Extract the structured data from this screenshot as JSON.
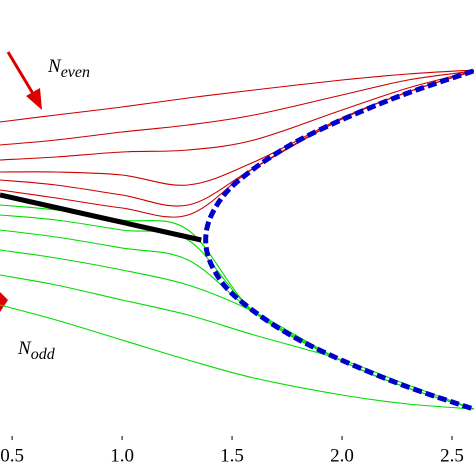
{
  "chart_data": {
    "type": "line",
    "annotations": [
      {
        "text": "N",
        "sub": "even"
      },
      {
        "text": "N",
        "sub": "odd"
      }
    ],
    "x": [
      0.445,
      0.7,
      1.0,
      1.3,
      1.6,
      2.0,
      2.3,
      2.6
    ],
    "series": [
      {
        "color": "#cc0000",
        "values": [
          3.18,
          3.25,
          3.33,
          3.42,
          3.5,
          3.6,
          3.66,
          3.7
        ]
      },
      {
        "color": "#cc0000",
        "values": [
          2.95,
          3.0,
          3.08,
          3.15,
          3.25,
          3.45,
          3.6,
          3.69
        ]
      },
      {
        "color": "#cc0000",
        "values": [
          2.8,
          2.83,
          2.88,
          2.9,
          3.0,
          3.3,
          3.52,
          3.69
        ]
      },
      {
        "color": "#cc0000",
        "values": [
          2.68,
          2.68,
          2.65,
          2.55,
          2.78,
          3.22,
          3.48,
          3.69
        ]
      },
      {
        "color": "#cc0000",
        "values": [
          2.6,
          2.55,
          2.45,
          2.35,
          2.72,
          3.21,
          3.48,
          3.69
        ]
      },
      {
        "color": "#cc0000",
        "values": [
          2.5,
          2.42,
          2.32,
          2.25,
          2.72,
          3.21,
          3.48,
          3.69
        ]
      },
      {
        "color": "#00dd00",
        "values": [
          2.35,
          2.3,
          2.2,
          2.1,
          1.28,
          0.79,
          0.52,
          0.31
        ]
      },
      {
        "color": "#00dd00",
        "values": [
          2.25,
          2.2,
          2.1,
          2.0,
          1.28,
          0.79,
          0.52,
          0.31
        ]
      },
      {
        "color": "#00dd00",
        "values": [
          2.1,
          2.03,
          1.92,
          1.8,
          1.28,
          0.79,
          0.52,
          0.31
        ]
      },
      {
        "color": "#00dd00",
        "values": [
          1.9,
          1.82,
          1.7,
          1.55,
          1.28,
          0.79,
          0.52,
          0.31
        ]
      },
      {
        "color": "#00dd00",
        "values": [
          1.65,
          1.55,
          1.4,
          1.25,
          1.05,
          0.8,
          0.55,
          0.31
        ]
      },
      {
        "color": "#00dd00",
        "values": [
          1.35,
          1.2,
          1.0,
          0.8,
          0.62,
          0.45,
          0.36,
          0.31
        ]
      },
      {
        "color": "#000000",
        "width": 5,
        "x": [
          0.445,
          1.36
        ],
        "values": [
          2.45,
          2.0
        ]
      },
      {
        "color": "#0000cc",
        "width": 5,
        "dashed": true,
        "x": [
          2.597,
          2.215,
          1.806,
          1.533,
          1.418,
          1.38,
          1.418,
          1.533,
          1.806,
          2.215,
          2.597
        ],
        "values": [
          3.69,
          3.4,
          3.0,
          2.6,
          2.3,
          2.0,
          1.7,
          1.4,
          1.0,
          0.6,
          0.31
        ]
      }
    ],
    "xlim": [
      0.445,
      2.6
    ],
    "ylim": [
      0,
      4.4
    ],
    "xticks": [
      0.5,
      {
        "value": 1,
        "label": "1.0"
      },
      1.5,
      {
        "value": 2,
        "label": "2.0"
      },
      2.5
    ],
    "grid": false
  }
}
